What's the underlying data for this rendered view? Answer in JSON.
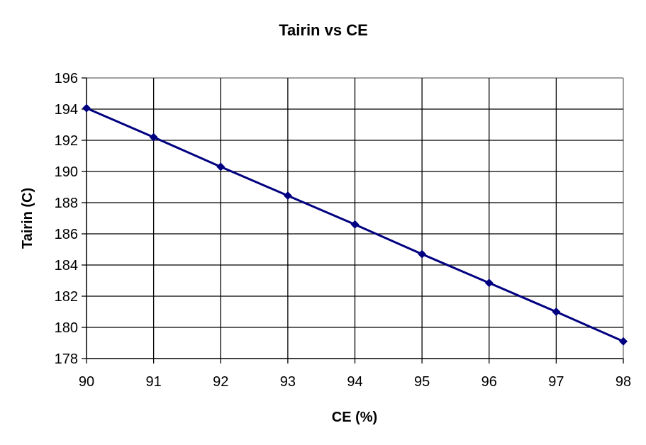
{
  "chart_data": {
    "type": "line",
    "title": "Tairin vs CE",
    "xlabel": "CE (%)",
    "ylabel": "Tairin (C)",
    "x": [
      90,
      91,
      92,
      93,
      94,
      95,
      96,
      97,
      98
    ],
    "series": [
      {
        "values": [
          194.06,
          192.2,
          190.3,
          188.45,
          186.6,
          184.7,
          182.85,
          181.0,
          179.1
        ],
        "color": "#000080",
        "marker": "diamond"
      }
    ],
    "xlim": [
      90,
      98
    ],
    "ylim": [
      178,
      196
    ],
    "xticks": [
      "90",
      "91",
      "92",
      "93",
      "94",
      "95",
      "96",
      "97",
      "98"
    ],
    "yticks": [
      "178",
      "180",
      "182",
      "184",
      "186",
      "188",
      "190",
      "192",
      "194",
      "196"
    ],
    "grid": true,
    "legend": "none"
  }
}
